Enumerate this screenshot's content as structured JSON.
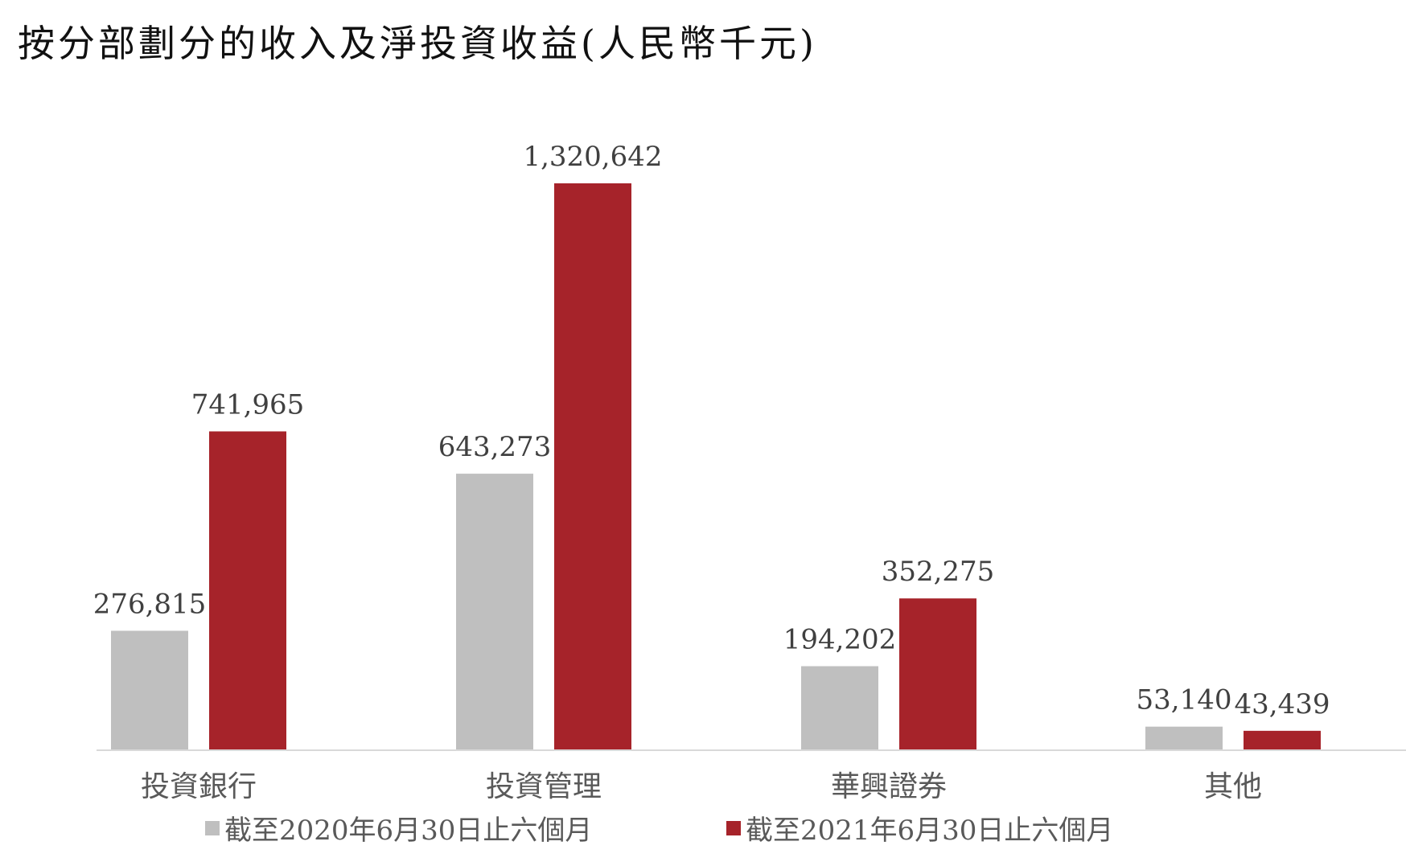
{
  "chart_data": {
    "type": "bar",
    "title": "按分部劃分的收入及淨投資收益(人民幣千元)",
    "categories": [
      "投資銀行",
      "投資管理",
      "華興證券",
      "其他"
    ],
    "series": [
      {
        "name": "截至2020年6月30日止六個月",
        "values": [
          276815,
          643273,
          194202,
          53140
        ],
        "labels": [
          "276,815",
          "643,273",
          "194,202",
          "53,140"
        ],
        "color": "#bfbfbf"
      },
      {
        "name": "截至2021年6月30日止六個月",
        "values": [
          741965,
          1320642,
          352275,
          43439
        ],
        "labels": [
          "741,965",
          "1,320,642",
          "352,275",
          "43,439"
        ],
        "color": "#a6232a"
      }
    ],
    "ylim": [
      0,
      1320642
    ],
    "grid": false,
    "legend_position": "bottom"
  }
}
